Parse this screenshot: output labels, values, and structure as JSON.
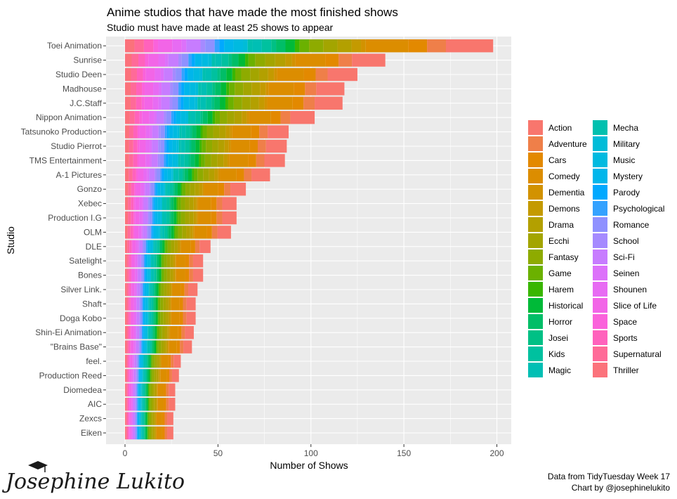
{
  "chart_data": {
    "type": "bar",
    "orientation": "horizontal",
    "stacked": true,
    "title": "Anime studios that have made the most finished shows",
    "subtitle": "Studio must have made at least 25 shows to appear",
    "xlabel": "Number of Shows",
    "ylabel": "Studio",
    "xlim": [
      0,
      200
    ],
    "xticks": [
      0,
      50,
      100,
      150,
      200
    ],
    "grid": true,
    "legend_position": "right",
    "categories": [
      "Toei Animation",
      "Sunrise",
      "Studio Deen",
      "Madhouse",
      "J.C.Staff",
      "Nippon Animation",
      "Tatsunoko Production",
      "Studio Pierrot",
      "TMS Entertainment",
      "A-1 Pictures",
      "Gonzo",
      "Xebec",
      "Production I.G",
      "OLM",
      "DLE",
      "Satelight",
      "Bones",
      "Silver Link.",
      "Shaft",
      "Doga Kobo",
      "Shin-Ei Animation",
      "\"Brains Base\"",
      "feel.",
      "Production Reed",
      "Diomedea",
      "AIC",
      "Zexcs",
      "Eiken"
    ],
    "values": [
      198,
      140,
      125,
      118,
      117,
      102,
      88,
      87,
      86,
      78,
      65,
      60,
      60,
      57,
      46,
      42,
      42,
      39,
      38,
      38,
      37,
      36,
      30,
      29,
      27,
      27,
      26,
      26
    ],
    "genres": [
      "Action",
      "Adventure",
      "Cars",
      "Comedy",
      "Dementia",
      "Demons",
      "Drama",
      "Ecchi",
      "Fantasy",
      "Game",
      "Harem",
      "Historical",
      "Horror",
      "Josei",
      "Kids",
      "Magic",
      "Mecha",
      "Military",
      "Music",
      "Mystery",
      "Parody",
      "Psychological",
      "Romance",
      "School",
      "Sci-Fi",
      "Seinen",
      "Shounen",
      "Slice of Life",
      "Space",
      "Sports",
      "Supernatural",
      "Thriller"
    ],
    "genre_colors": [
      "#F8766D",
      "#EF7F49",
      "#E38900",
      "#DC8D00",
      "#D29200",
      "#C49A00",
      "#B3A000",
      "#A3A500",
      "#8EAB00",
      "#6BB100",
      "#39B600",
      "#00BA38",
      "#00BE67",
      "#00C085",
      "#00C19F",
      "#00BFB4",
      "#00C0AF",
      "#00BCD8",
      "#00BAE0",
      "#00B6EB",
      "#00A9FF",
      "#35A2FF",
      "#8F91FF",
      "#A58AFF",
      "#C77CFF",
      "#DC71FA",
      "#E76BF3",
      "#F265E7",
      "#FA62DB",
      "#FF62BC",
      "#FF6A98",
      "#FB727B"
    ]
  },
  "caption": {
    "line1": "Data from TidyTuesday Week 17",
    "line2": "Chart by @josephinelukito"
  },
  "signature": "Josephine Lukito"
}
